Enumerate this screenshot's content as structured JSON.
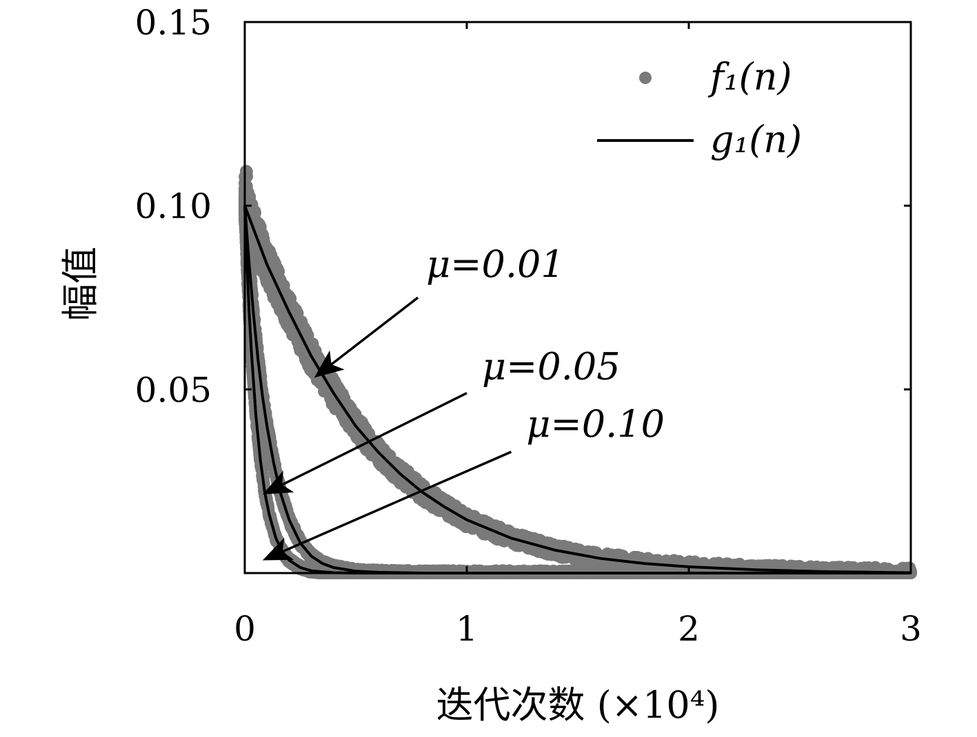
{
  "chart_data": {
    "type": "scatter",
    "title": "",
    "xlabel": "迭代次数 (×10⁴)",
    "ylabel": "幅值",
    "xlim": [
      0,
      3
    ],
    "ylim": [
      0,
      0.15
    ],
    "x_ticks": [
      0,
      1,
      2,
      3
    ],
    "x_tick_labels": [
      "0",
      "1",
      "2",
      "3"
    ],
    "y_ticks": [
      0.05,
      0.1,
      0.15
    ],
    "y_tick_labels": [
      "0.05",
      "0.10",
      "0.15"
    ],
    "grid": false,
    "legend_position": "top-right",
    "legend": [
      {
        "label": "f₁(n)",
        "marker": "dot",
        "color": "#7a7a7a"
      },
      {
        "label": "g₁(n)",
        "marker": "line",
        "color": "#000000"
      }
    ],
    "series": [
      {
        "mu": 0.01,
        "annotation": "μ=0.01",
        "scatter_color": "#7a7a7a",
        "scatter_spread": 0.004,
        "scatter_start": 0.11,
        "curve_x": [
          0,
          0.1,
          0.2,
          0.3,
          0.4,
          0.5,
          0.6,
          0.7,
          0.8,
          0.9,
          1.0,
          1.2,
          1.4,
          1.6,
          1.8,
          2.0,
          2.3,
          2.6,
          3.0
        ],
        "curve_y": [
          0.1,
          0.084,
          0.071,
          0.059,
          0.049,
          0.04,
          0.033,
          0.027,
          0.022,
          0.018,
          0.0145,
          0.0095,
          0.0062,
          0.004,
          0.0026,
          0.0017,
          0.0009,
          0.0004,
          0.0001
        ]
      },
      {
        "mu": 0.05,
        "annotation": "μ=0.05",
        "scatter_color": "#7a7a7a",
        "scatter_spread": 0.002,
        "scatter_start": 0.105,
        "curve_x": [
          0,
          0.02,
          0.04,
          0.06,
          0.08,
          0.1,
          0.13,
          0.16,
          0.2,
          0.25,
          0.3,
          0.35,
          0.4,
          0.5,
          0.6,
          0.8,
          1.0,
          2.0,
          3.0
        ],
        "curve_y": [
          0.1,
          0.084,
          0.07,
          0.058,
          0.048,
          0.04,
          0.03,
          0.022,
          0.0145,
          0.0082,
          0.0046,
          0.0026,
          0.0015,
          0.0005,
          0.0002,
          0.0,
          0.0,
          0.0,
          0.0
        ]
      },
      {
        "mu": 0.1,
        "annotation": "μ=0.10",
        "scatter_color": "#7a7a7a",
        "scatter_spread": 0.0015,
        "scatter_start": 0.1,
        "curve_x": [
          0,
          0.01,
          0.02,
          0.03,
          0.05,
          0.07,
          0.09,
          0.11,
          0.14,
          0.17,
          0.2,
          0.25,
          0.3,
          0.4,
          0.5,
          1.0,
          2.0,
          3.0
        ],
        "curve_y": [
          0.1,
          0.084,
          0.071,
          0.06,
          0.043,
          0.031,
          0.022,
          0.016,
          0.0095,
          0.0058,
          0.0035,
          0.0015,
          0.0006,
          0.0001,
          0.0,
          0.0,
          0.0,
          0.0
        ]
      }
    ],
    "arrows": [
      {
        "annotation_index": 0,
        "from": [
          0.78,
          0.075
        ],
        "to": [
          0.33,
          0.054
        ]
      },
      {
        "annotation_index": 1,
        "from": [
          1.0,
          0.049
        ],
        "to": [
          0.1,
          0.022
        ]
      },
      {
        "annotation_index": 2,
        "from": [
          1.2,
          0.033
        ],
        "to": [
          0.1,
          0.004
        ]
      }
    ]
  }
}
